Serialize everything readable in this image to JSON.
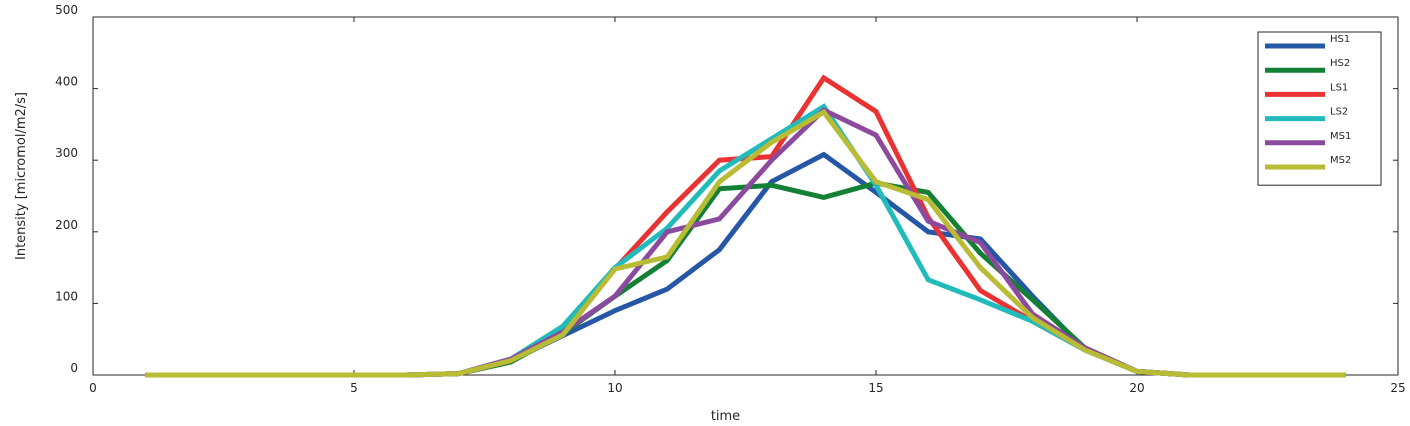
{
  "chart_data": {
    "type": "line",
    "title": "",
    "xlabel": "time",
    "ylabel": "Intensity [micromol/m2/s]",
    "xlim": [
      0,
      25
    ],
    "ylim": [
      0,
      500
    ],
    "xticks": [
      0,
      5,
      10,
      15,
      20,
      25
    ],
    "yticks": [
      0,
      100,
      200,
      300,
      400,
      500
    ],
    "grid": false,
    "legend_position": "top-right",
    "x": [
      1,
      2,
      3,
      4,
      5,
      6,
      7,
      8,
      9,
      10,
      11,
      12,
      13,
      14,
      15,
      16,
      17,
      18,
      19,
      20,
      21,
      22,
      23,
      24
    ],
    "series": [
      {
        "name": "HS1",
        "color": "#2557a6",
        "values": [
          0,
          0,
          0,
          0,
          0,
          0,
          2,
          20,
          55,
          90,
          120,
          175,
          270,
          308,
          255,
          200,
          190,
          110,
          35,
          5,
          0,
          0,
          0,
          0
        ]
      },
      {
        "name": "HS2",
        "color": "#138035",
        "values": [
          0,
          0,
          0,
          0,
          0,
          0,
          2,
          18,
          58,
          110,
          160,
          260,
          265,
          248,
          268,
          255,
          170,
          105,
          38,
          5,
          0,
          0,
          0,
          0
        ]
      },
      {
        "name": "LS1",
        "color": "#ea3232",
        "values": [
          0,
          0,
          0,
          0,
          0,
          0,
          2,
          20,
          62,
          148,
          228,
          300,
          305,
          415,
          368,
          220,
          118,
          75,
          35,
          5,
          0,
          0,
          0,
          0
        ]
      },
      {
        "name": "LS2",
        "color": "#21bbbc",
        "values": [
          0,
          0,
          0,
          0,
          0,
          0,
          2,
          22,
          68,
          150,
          205,
          285,
          330,
          375,
          265,
          133,
          105,
          75,
          35,
          5,
          0,
          0,
          0,
          0
        ]
      },
      {
        "name": "MS1",
        "color": "#8b4a9e",
        "values": [
          0,
          0,
          0,
          0,
          0,
          0,
          2,
          22,
          60,
          110,
          200,
          218,
          300,
          370,
          335,
          215,
          185,
          85,
          38,
          5,
          0,
          0,
          0,
          0
        ]
      },
      {
        "name": "MS2",
        "color": "#b8bb34",
        "values": [
          0,
          0,
          0,
          0,
          0,
          0,
          2,
          20,
          56,
          148,
          165,
          270,
          325,
          367,
          270,
          245,
          150,
          80,
          35,
          5,
          0,
          0,
          0,
          0
        ]
      }
    ]
  }
}
